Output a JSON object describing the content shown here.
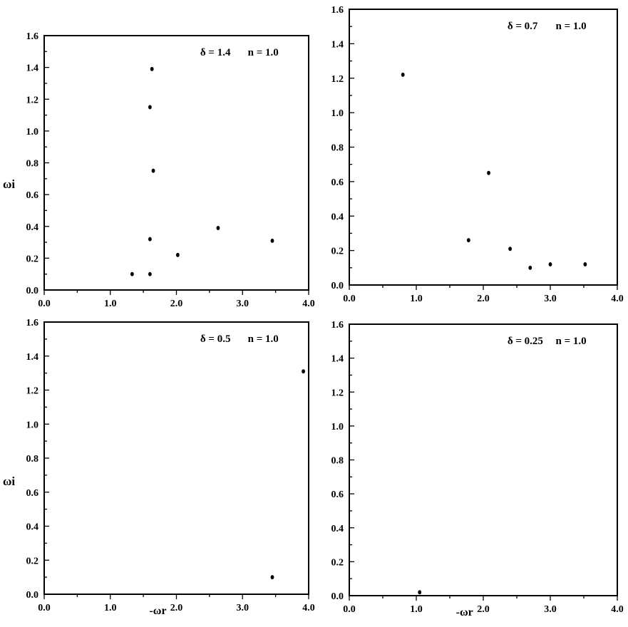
{
  "chart_data": [
    {
      "type": "scatter",
      "title": "",
      "annotation": {
        "delta": "δ = 1.4",
        "n": "n = 1.0"
      },
      "xlabel": "",
      "ylabel": "ωi",
      "xlim": [
        0,
        4
      ],
      "ylim": [
        0,
        1.6
      ],
      "xticks": [
        "0.0",
        "1.0",
        "2.0",
        "3.0",
        "4.0"
      ],
      "yticks": [
        "0.0",
        "0.2",
        "0.4",
        "0.6",
        "0.8",
        "1.0",
        "1.2",
        "1.4",
        "1.6"
      ],
      "points": [
        {
          "x": 1.33,
          "y": 0.1
        },
        {
          "x": 1.6,
          "y": 0.1
        },
        {
          "x": 1.6,
          "y": 0.32
        },
        {
          "x": 1.6,
          "y": 1.15
        },
        {
          "x": 1.63,
          "y": 1.39
        },
        {
          "x": 1.65,
          "y": 0.75
        },
        {
          "x": 2.02,
          "y": 0.22
        },
        {
          "x": 2.63,
          "y": 0.39
        },
        {
          "x": 3.45,
          "y": 0.31
        }
      ]
    },
    {
      "type": "scatter",
      "title": "",
      "annotation": {
        "delta": "δ = 0.7",
        "n": "n = 1.0"
      },
      "xlabel": "",
      "ylabel": "",
      "xlim": [
        0,
        4
      ],
      "ylim": [
        0,
        1.6
      ],
      "xticks": [
        "0.0",
        "1.0",
        "2.0",
        "3.0",
        "4.0"
      ],
      "yticks": [
        "0.0",
        "0.2",
        "0.4",
        "0.6",
        "0.8",
        "1.0",
        "1.2",
        "1.4",
        "1.6"
      ],
      "points": [
        {
          "x": 0.8,
          "y": 1.22
        },
        {
          "x": 1.78,
          "y": 0.26
        },
        {
          "x": 2.08,
          "y": 0.65
        },
        {
          "x": 2.4,
          "y": 0.21
        },
        {
          "x": 2.7,
          "y": 0.1
        },
        {
          "x": 3.0,
          "y": 0.12
        },
        {
          "x": 3.52,
          "y": 0.12
        }
      ]
    },
    {
      "type": "scatter",
      "title": "",
      "annotation": {
        "delta": "δ = 0.5",
        "n": "n = 1.0"
      },
      "xlabel": "-ωr",
      "ylabel": "ωi",
      "xlim": [
        0,
        4
      ],
      "ylim": [
        0,
        1.6
      ],
      "xticks": [
        "0.0",
        "1.0",
        "2.0",
        "3.0",
        "4.0"
      ],
      "yticks": [
        "0.0",
        "0.2",
        "0.4",
        "0.6",
        "0.8",
        "1.0",
        "1.2",
        "1.4",
        "1.6"
      ],
      "points": [
        {
          "x": 3.45,
          "y": 0.1
        },
        {
          "x": 3.92,
          "y": 1.31
        }
      ]
    },
    {
      "type": "scatter",
      "title": "",
      "annotation": {
        "delta": "δ = 0.25",
        "n": "n = 1.0"
      },
      "xlabel": "-ωr",
      "ylabel": "",
      "xlim": [
        0,
        4
      ],
      "ylim": [
        0,
        1.6
      ],
      "xticks": [
        "0.0",
        "1.0",
        "2.0",
        "3.0",
        "4.0"
      ],
      "yticks": [
        "0.0",
        "0.2",
        "0.4",
        "0.6",
        "0.8",
        "1.0",
        "1.2",
        "1.4",
        "1.6"
      ],
      "points": [
        {
          "x": 1.05,
          "y": 0.02
        }
      ]
    }
  ]
}
